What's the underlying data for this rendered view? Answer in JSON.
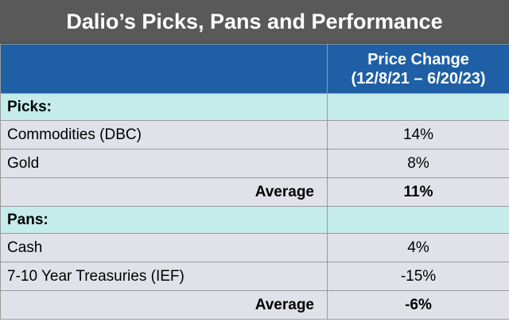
{
  "title": "Dalio’s Picks, Pans and Performance",
  "header": {
    "column_label_line1": "Price Change",
    "column_label_line2": "(12/8/21 – 6/20/23)"
  },
  "picks": {
    "label": "Picks:",
    "rows": [
      {
        "name": "Commodities (DBC)",
        "value": "14%"
      },
      {
        "name": "Gold",
        "value": "8%"
      }
    ],
    "average_label": "Average",
    "average_value": "11%"
  },
  "pans": {
    "label": "Pans:",
    "rows": [
      {
        "name": "Cash",
        "value": "4%"
      },
      {
        "name": "7-10 Year Treasuries (IEF)",
        "value": "-15%"
      }
    ],
    "average_label": "Average",
    "average_value": "-6%"
  },
  "colors": {
    "title_bg": "#595959",
    "header_bg": "#1f5fa6",
    "section_bg": "#c5ebeb",
    "row_bg": "#e1e1ea"
  }
}
